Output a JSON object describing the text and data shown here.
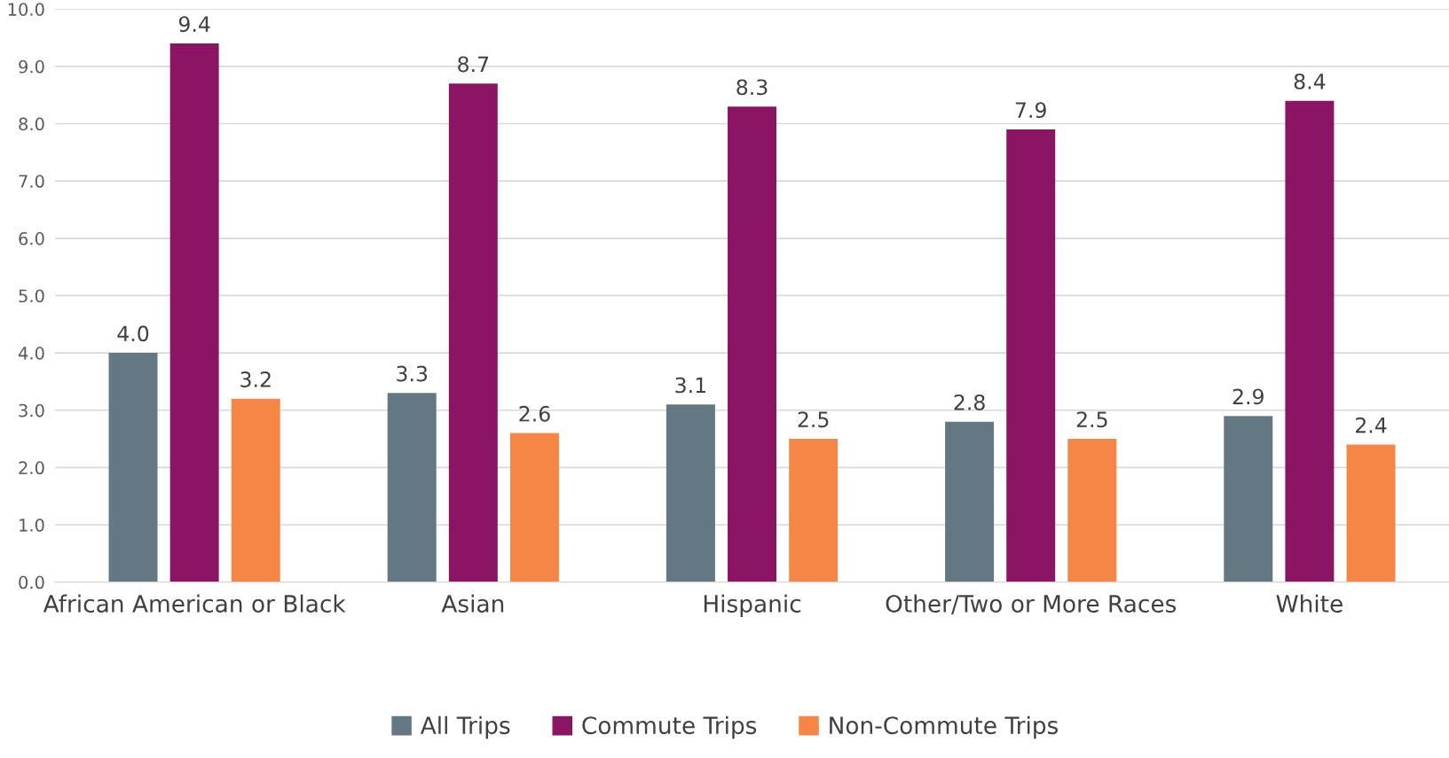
{
  "chart_data": {
    "type": "bar",
    "categories": [
      "African American or Black",
      "Asian",
      "Hispanic",
      "Other/Two or More Races",
      "White"
    ],
    "series": [
      {
        "name": "All Trips",
        "color": "#637883",
        "values": [
          4.0,
          3.3,
          3.1,
          2.8,
          2.9
        ],
        "value_labels": [
          "4.0",
          "3.3",
          "3.1",
          "2.8",
          "2.9"
        ]
      },
      {
        "name": "Commute Trips",
        "color": "#8b1465",
        "values": [
          9.4,
          8.7,
          8.3,
          7.9,
          8.4
        ],
        "value_labels": [
          "9.4",
          "8.7",
          "8.3",
          "7.9",
          "8.4"
        ]
      },
      {
        "name": "Non-Commute Trips",
        "color": "#f58646",
        "values": [
          3.2,
          2.6,
          2.5,
          2.5,
          2.4
        ],
        "value_labels": [
          "3.2",
          "2.6",
          "2.5",
          "2.5",
          "2.4"
        ]
      }
    ],
    "ylim": [
      0,
      10
    ],
    "yticks": [
      {
        "value": 0,
        "label": "0.0"
      },
      {
        "value": 1,
        "label": "1.0"
      },
      {
        "value": 2,
        "label": "2.0"
      },
      {
        "value": 3,
        "label": "3.0"
      },
      {
        "value": 4,
        "label": "4.0"
      },
      {
        "value": 5,
        "label": "5.0"
      },
      {
        "value": 6,
        "label": "6.0"
      },
      {
        "value": 7,
        "label": "7.0"
      },
      {
        "value": 8,
        "label": "8.0"
      },
      {
        "value": 9,
        "label": "9.0"
      },
      {
        "value": 10,
        "label": "10.0"
      }
    ],
    "grid": "y",
    "legend": "bottom"
  }
}
